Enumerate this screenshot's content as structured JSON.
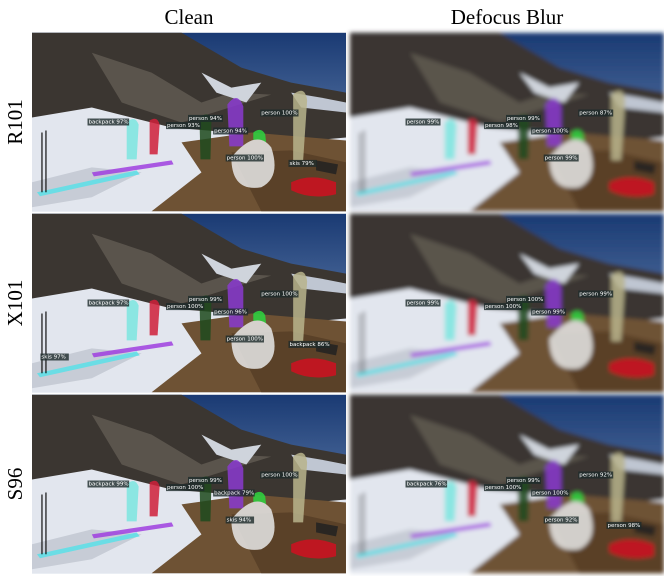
{
  "columns": [
    "Clean",
    "Defocus Blur"
  ],
  "rows": [
    "R101",
    "X101",
    "S96"
  ],
  "panels": [
    {
      "labels": [
        "backpack 97%",
        "person 94%",
        "person 93%",
        "person 100%",
        "person 94%",
        "person 100%",
        "skis 79%"
      ]
    },
    {
      "labels": [
        "person 99%",
        "person 99%",
        "person 98%",
        "person 87%",
        "person 100%",
        "person 99%"
      ]
    },
    {
      "labels": [
        "backpack 97%",
        "person 99%",
        "person 100%",
        "person 100%",
        "person 96%",
        "person 100%",
        "backpack 86%",
        "skis 97%"
      ]
    },
    {
      "labels": [
        "person 99%",
        "person 100%",
        "person 100%",
        "person 99%",
        "person 99%"
      ]
    },
    {
      "labels": [
        "backpack 99%",
        "person 99%",
        "person 100%",
        "person 100%",
        "backpack 79%",
        "skis 94%"
      ]
    },
    {
      "labels": [
        "backpack 76%",
        "person 99%",
        "person 100%",
        "person 92%",
        "person 100%",
        "person 92%",
        "person 98%"
      ]
    }
  ]
}
